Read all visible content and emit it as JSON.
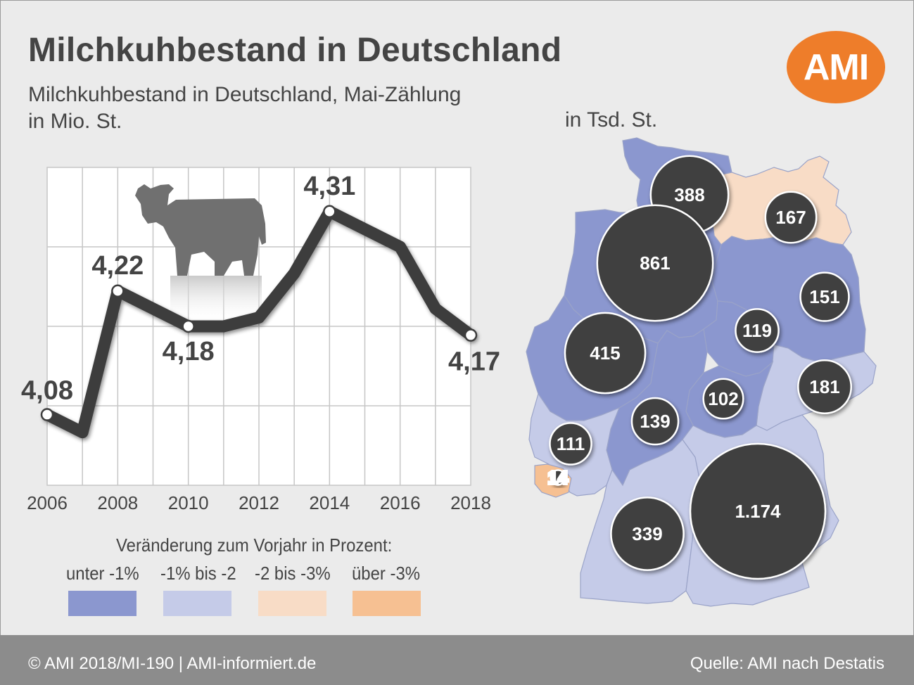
{
  "title": "Milchkuhbestand in Deutschland",
  "subtitle_line1": "Milchkuhbestand in Deutschland, Mai-Zählung",
  "subtitle_line2": "in Mio. St.",
  "map_unit": "in Tsd. St.",
  "logo": "AMI",
  "legend": {
    "title": "Veränderung zum Vorjahr in Prozent:",
    "items": [
      {
        "label": "unter -1%",
        "color": "#8b97cf"
      },
      {
        "label": "-1% bis -2",
        "color": "#c5cbe8"
      },
      {
        "label": "-2 bis -3%",
        "color": "#f8dcc6"
      },
      {
        "label": "über -3%",
        "color": "#f6c092"
      }
    ]
  },
  "footer": {
    "left": "© AMI 2018/MI-190 | AMI-informiert.de",
    "right": "Quelle: AMI nach Destatis"
  },
  "chart_data": [
    {
      "type": "line",
      "title": "Milchkuhbestand in Deutschland, Mai-Zählung",
      "ylabel": "in Mio. St.",
      "x": [
        2006,
        2007,
        2008,
        2009,
        2010,
        2011,
        2012,
        2013,
        2014,
        2015,
        2016,
        2017,
        2018
      ],
      "values": [
        4.08,
        4.06,
        4.22,
        4.2,
        4.18,
        4.18,
        4.19,
        4.24,
        4.31,
        4.29,
        4.27,
        4.2,
        4.17
      ],
      "xticks": [
        "2006",
        "2008",
        "2010",
        "2012",
        "2014",
        "2016",
        "2018"
      ],
      "ylim": [
        4.0,
        4.36
      ],
      "grid": true,
      "labeled_points": [
        {
          "x": 2006,
          "label": "4,08"
        },
        {
          "x": 2008,
          "label": "4,22"
        },
        {
          "x": 2010,
          "label": "4,18"
        },
        {
          "x": 2014,
          "label": "4,31"
        },
        {
          "x": 2018,
          "label": "4,17"
        }
      ]
    },
    {
      "type": "bubble-map",
      "unit": "in Tsd. St.",
      "regions": [
        {
          "region": "Schleswig-Holstein",
          "value": 388,
          "label": "388",
          "category": "unter -1%"
        },
        {
          "region": "Mecklenburg-Vorpommern",
          "value": 167,
          "label": "167",
          "category": "-2 bis -3%"
        },
        {
          "region": "Niedersachsen",
          "value": 861,
          "label": "861",
          "category": "unter -1%"
        },
        {
          "region": "Brandenburg",
          "value": 151,
          "label": "151",
          "category": "unter -1%"
        },
        {
          "region": "Sachsen-Anhalt",
          "value": 119,
          "label": "119",
          "category": "unter -1%"
        },
        {
          "region": "Nordrhein-Westfalen",
          "value": 415,
          "label": "415",
          "category": "unter -1%"
        },
        {
          "region": "Sachsen",
          "value": 181,
          "label": "181",
          "category": "-1% bis -2"
        },
        {
          "region": "Thüringen",
          "value": 102,
          "label": "102",
          "category": "unter -1%"
        },
        {
          "region": "Hessen",
          "value": 139,
          "label": "139",
          "category": "unter -1%"
        },
        {
          "region": "Rheinland-Pfalz",
          "value": 111,
          "label": "111",
          "category": "-1% bis -2"
        },
        {
          "region": "Saarland",
          "value": 14,
          "label": "14",
          "category": "über -3%"
        },
        {
          "region": "Baden-Württemberg",
          "value": 339,
          "label": "339",
          "category": "-1% bis -2"
        },
        {
          "region": "Bayern",
          "value": 1174,
          "label": "1.174",
          "category": "-1% bis -2"
        }
      ]
    }
  ]
}
